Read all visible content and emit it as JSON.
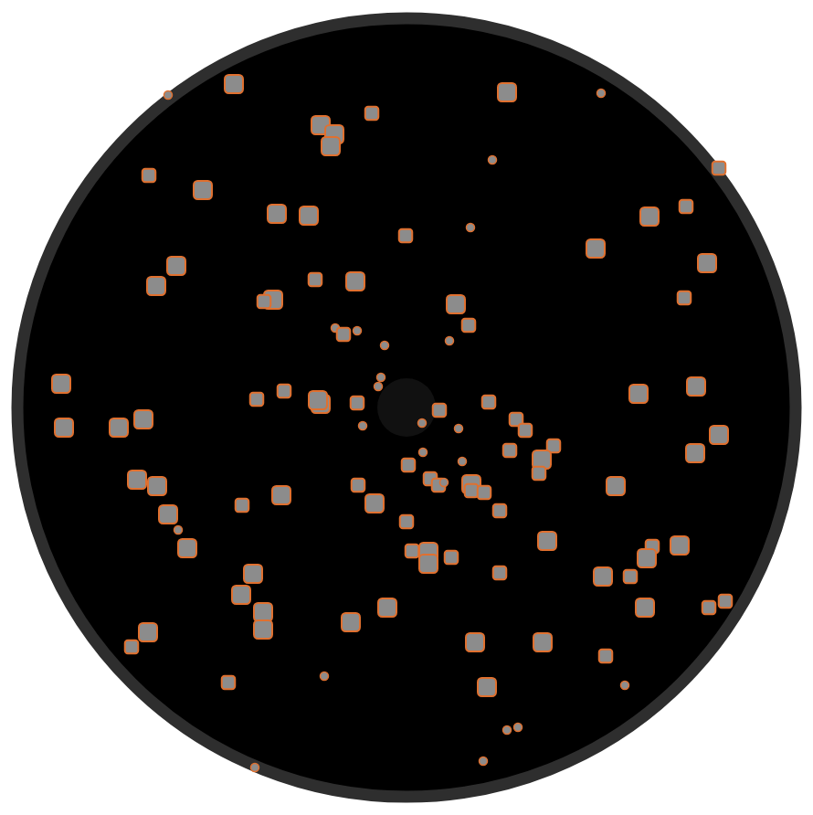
{
  "chart_data": {
    "type": "scatter",
    "color": "#e0702f",
    "marker": "square",
    "tick_labels": false,
    "xlim": [
      -445,
      445
    ],
    "ylim": [
      -446,
      446
    ],
    "x": [
      -261,
      -189,
      110,
      213,
      342,
      -94,
      -79,
      -83,
      -38,
      -282,
      94,
      -223,
      -142,
      -107,
      -1,
      70,
      266,
      306,
      207,
      -252,
      -274,
      329,
      -146,
      -156,
      -100,
      -56,
      54,
      304,
      68,
      -78,
      -69,
      -54,
      47,
      -24,
      -28,
      -31,
      -378,
      -375,
      -315,
      -288,
      -164,
      -134,
      -94,
      -97,
      -54,
      36,
      17,
      -48,
      90,
      254,
      317,
      120,
      130,
      57,
      342,
      316,
      161,
      113,
      18,
      148,
      145,
      2,
      61,
      -295,
      -273,
      229,
      26,
      35,
      41,
      71,
      71,
      85,
      -53,
      -137,
      -180,
      -35,
      -261,
      102,
      0,
      -250,
      -240,
      154,
      299,
      269,
      263,
      6,
      24,
      24,
      49,
      -168,
      102,
      215,
      245,
      -181,
      -157,
      -157,
      -21,
      261,
      331,
      349,
      -61,
      -283,
      -301,
      75,
      149,
      218,
      -195,
      -90,
      239,
      88,
      110,
      122,
      84,
      -166
    ],
    "y": [
      342,
      354,
      345,
      344,
      262,
      309,
      299,
      286,
      322,
      254,
      271,
      238,
      212,
      210,
      188,
      197,
      209,
      220,
      174,
      155,
      133,
      158,
      118,
      116,
      140,
      138,
      113,
      120,
      90,
      87,
      80,
      84,
      73,
      68,
      33,
      23,
      26,
      -22,
      -22,
      -13,
      9,
      18,
      4,
      8,
      5,
      -3,
      -17,
      -20,
      6,
      15,
      23,
      -13,
      -25,
      -23,
      -30,
      -50,
      -42,
      -47,
      -49,
      -57,
      -72,
      -63,
      -59,
      -79,
      -86,
      -86,
      -78,
      -85,
      -82,
      -84,
      -91,
      -93,
      -85,
      -96,
      -107,
      -105,
      -117,
      -113,
      -125,
      -134,
      -154,
      -146,
      -151,
      -152,
      -165,
      -157,
      -158,
      -171,
      -164,
      -182,
      -181,
      -185,
      -185,
      -205,
      -224,
      -243,
      -219,
      -219,
      -219,
      -212,
      -235,
      -246,
      -262,
      -257,
      -257,
      -272,
      -301,
      -294,
      -304,
      -306,
      -353,
      -350,
      -387,
      -394
    ],
    "sizes": [
      1,
      3,
      3,
      1,
      2,
      3,
      3,
      3,
      2,
      2,
      1,
      3,
      3,
      3,
      2,
      1,
      3,
      2,
      3,
      3,
      3,
      3,
      3,
      2,
      2,
      3,
      3,
      2,
      2,
      1,
      2,
      1,
      1,
      1,
      1,
      1,
      3,
      3,
      3,
      3,
      2,
      2,
      3,
      3,
      2,
      2,
      1,
      1,
      2,
      3,
      3,
      2,
      2,
      1,
      3,
      3,
      2,
      2,
      1,
      3,
      2,
      2,
      1,
      3,
      3,
      3,
      2,
      2,
      1,
      3,
      2,
      2,
      2,
      3,
      2,
      3,
      3,
      2,
      2,
      1,
      3,
      3,
      3,
      2,
      3,
      2,
      3,
      3,
      2,
      3,
      2,
      3,
      2,
      3,
      3,
      3,
      3,
      3,
      2,
      2,
      3,
      3,
      2,
      3,
      3,
      2,
      2,
      1,
      1,
      3,
      1,
      1,
      1,
      1
    ]
  }
}
